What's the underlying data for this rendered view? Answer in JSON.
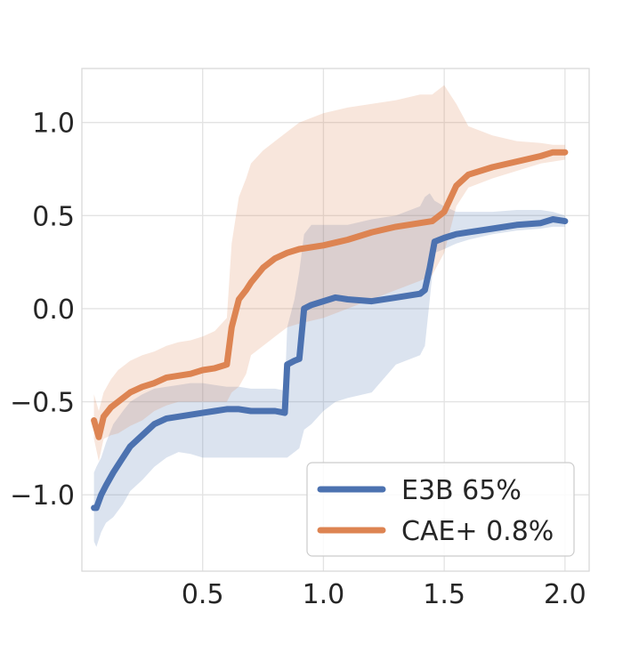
{
  "chart_data": {
    "type": "line",
    "title": "",
    "xlabel": "",
    "ylabel": "",
    "xlim": [
      0.0,
      2.1
    ],
    "ylim": [
      -1.41,
      1.29
    ],
    "xticks": [
      0.5,
      1.0,
      1.5,
      2.0
    ],
    "xtick_labels": [
      "0.5",
      "1.0",
      "1.5",
      "2.0"
    ],
    "yticks": [
      -1.0,
      -0.5,
      0.0,
      0.5,
      1.0
    ],
    "ytick_labels": [
      "−1.0",
      "−0.5",
      "0.0",
      "0.5",
      "1.0"
    ],
    "grid": true,
    "legend_position": "lower-right",
    "series": [
      {
        "name": "E3B 65%",
        "color": "#4c72b0",
        "x": [
          0.05,
          0.06,
          0.08,
          0.1,
          0.13,
          0.17,
          0.2,
          0.25,
          0.3,
          0.35,
          0.4,
          0.45,
          0.5,
          0.55,
          0.6,
          0.65,
          0.7,
          0.75,
          0.8,
          0.84,
          0.85,
          0.88,
          0.9,
          0.92,
          0.95,
          1.0,
          1.05,
          1.1,
          1.2,
          1.3,
          1.4,
          1.42,
          1.44,
          1.46,
          1.5,
          1.55,
          1.6,
          1.7,
          1.8,
          1.9,
          1.95,
          2.0
        ],
        "values": [
          -1.07,
          -1.07,
          -1.0,
          -0.95,
          -0.88,
          -0.8,
          -0.74,
          -0.68,
          -0.62,
          -0.59,
          -0.58,
          -0.57,
          -0.56,
          -0.55,
          -0.54,
          -0.54,
          -0.55,
          -0.55,
          -0.55,
          -0.56,
          -0.3,
          -0.28,
          -0.27,
          0.0,
          0.02,
          0.04,
          0.06,
          0.05,
          0.04,
          0.06,
          0.08,
          0.1,
          0.22,
          0.36,
          0.38,
          0.4,
          0.41,
          0.43,
          0.45,
          0.46,
          0.48,
          0.47
        ],
        "upper": [
          -0.88,
          -0.85,
          -0.8,
          -0.72,
          -0.62,
          -0.55,
          -0.5,
          -0.46,
          -0.43,
          -0.42,
          -0.41,
          -0.4,
          -0.4,
          -0.41,
          -0.42,
          -0.42,
          -0.43,
          -0.43,
          -0.43,
          -0.44,
          -0.1,
          0.05,
          0.2,
          0.4,
          0.45,
          0.45,
          0.45,
          0.45,
          0.48,
          0.5,
          0.55,
          0.6,
          0.62,
          0.58,
          0.55,
          0.52,
          0.52,
          0.52,
          0.53,
          0.53,
          0.52,
          0.5
        ],
        "lower": [
          -1.25,
          -1.28,
          -1.2,
          -1.15,
          -1.12,
          -1.05,
          -0.98,
          -0.92,
          -0.85,
          -0.8,
          -0.77,
          -0.78,
          -0.8,
          -0.8,
          -0.8,
          -0.8,
          -0.8,
          -0.8,
          -0.8,
          -0.8,
          -0.8,
          -0.77,
          -0.75,
          -0.65,
          -0.62,
          -0.55,
          -0.5,
          -0.48,
          -0.45,
          -0.3,
          -0.25,
          -0.2,
          0.05,
          0.3,
          0.32,
          0.35,
          0.37,
          0.4,
          0.42,
          0.43,
          0.44,
          0.44
        ]
      },
      {
        "name": "CAE+ 0.8%",
        "color": "#dd8452",
        "x": [
          0.05,
          0.07,
          0.09,
          0.12,
          0.15,
          0.2,
          0.25,
          0.3,
          0.35,
          0.4,
          0.45,
          0.5,
          0.55,
          0.6,
          0.62,
          0.65,
          0.68,
          0.7,
          0.75,
          0.8,
          0.85,
          0.9,
          1.0,
          1.1,
          1.2,
          1.3,
          1.4,
          1.45,
          1.5,
          1.55,
          1.6,
          1.7,
          1.8,
          1.9,
          1.95,
          2.0
        ],
        "values": [
          -0.6,
          -0.69,
          -0.58,
          -0.53,
          -0.5,
          -0.45,
          -0.42,
          -0.4,
          -0.37,
          -0.36,
          -0.35,
          -0.33,
          -0.32,
          -0.3,
          -0.1,
          0.05,
          0.1,
          0.14,
          0.22,
          0.27,
          0.3,
          0.32,
          0.34,
          0.37,
          0.41,
          0.44,
          0.46,
          0.47,
          0.52,
          0.66,
          0.72,
          0.76,
          0.79,
          0.82,
          0.84,
          0.84
        ],
        "upper": [
          -0.46,
          -0.55,
          -0.45,
          -0.38,
          -0.33,
          -0.28,
          -0.25,
          -0.23,
          -0.2,
          -0.18,
          -0.17,
          -0.15,
          -0.12,
          -0.05,
          0.35,
          0.6,
          0.7,
          0.78,
          0.85,
          0.9,
          0.95,
          1.0,
          1.05,
          1.08,
          1.1,
          1.12,
          1.15,
          1.15,
          1.2,
          1.1,
          0.98,
          0.93,
          0.9,
          0.89,
          0.88,
          0.88
        ],
        "lower": [
          -0.7,
          -0.82,
          -0.7,
          -0.68,
          -0.67,
          -0.63,
          -0.6,
          -0.55,
          -0.52,
          -0.5,
          -0.5,
          -0.5,
          -0.5,
          -0.5,
          -0.45,
          -0.42,
          -0.35,
          -0.25,
          -0.2,
          -0.15,
          -0.1,
          -0.08,
          -0.05,
          0.0,
          0.05,
          0.1,
          0.15,
          0.18,
          0.3,
          0.55,
          0.65,
          0.7,
          0.74,
          0.78,
          0.79,
          0.8
        ]
      }
    ]
  }
}
